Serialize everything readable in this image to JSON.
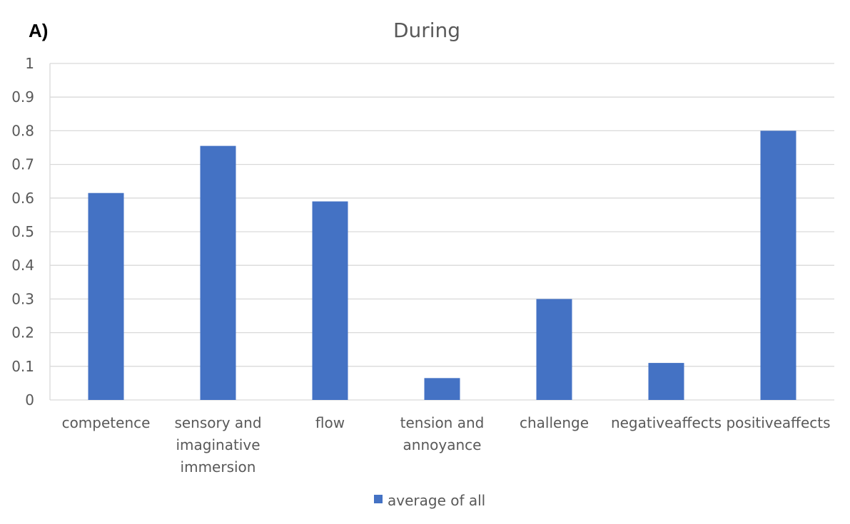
{
  "panel_label": "A)",
  "chart_data": {
    "type": "bar",
    "title": "During",
    "categories": [
      [
        "competence"
      ],
      [
        "sensory and",
        "imaginative",
        "immersion"
      ],
      [
        "flow"
      ],
      [
        "tension and",
        "annoyance"
      ],
      [
        "challenge"
      ],
      [
        "negativeaffects"
      ],
      [
        "positiveaffects"
      ]
    ],
    "series": [
      {
        "name": "average of all",
        "values": [
          0.615,
          0.755,
          0.59,
          0.065,
          0.3,
          0.11,
          0.8
        ],
        "color": "#4472c4"
      }
    ],
    "yticks": [
      "0",
      "0.1",
      "0.2",
      "0.3",
      "0.4",
      "0.5",
      "0.6",
      "0.7",
      "0.8",
      "0.9",
      "1"
    ],
    "ylim": [
      0,
      1
    ],
    "grid": true,
    "legend_position": "bottom",
    "xlabel": "",
    "ylabel": ""
  }
}
